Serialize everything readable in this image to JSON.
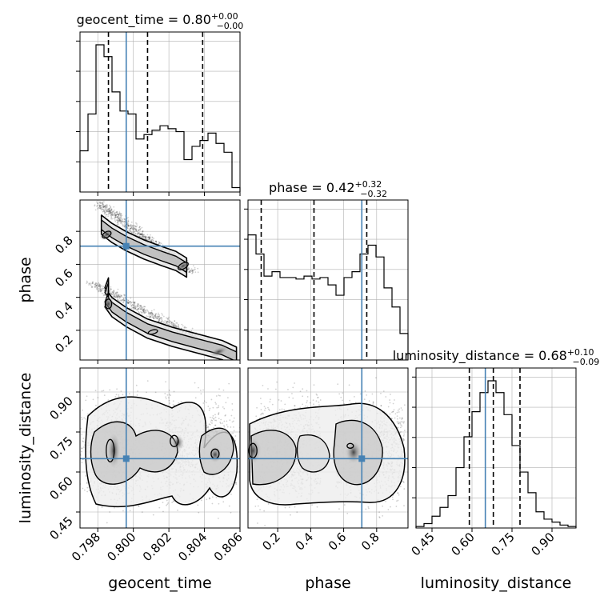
{
  "chart_data": {
    "type": "corner",
    "parameters": [
      "geocent_time",
      "phase",
      "luminosity_distance"
    ],
    "axis_labels": {
      "geocent_time": "geocent_time",
      "phase": "phase",
      "luminosity_distance": "luminosity_distance"
    },
    "titles": [
      {
        "param": "geocent_time",
        "prefix": "geocent_time = ",
        "median": "0.80",
        "plus": "+0.00",
        "minus": "−0.00"
      },
      {
        "param": "phase",
        "prefix": "phase = ",
        "median": "0.42",
        "plus": "+0.32",
        "minus": "−0.32"
      },
      {
        "param": "luminosity_distance",
        "prefix": "luminosity_distance = ",
        "median": "0.68",
        "plus": "+0.10",
        "minus": "−0.09"
      }
    ],
    "ranges": {
      "geocent_time": [
        0.797,
        0.806
      ],
      "phase": [
        0.02,
        0.99
      ],
      "luminosity_distance": [
        0.39,
        0.99
      ]
    },
    "ticks": {
      "geocent_time": [
        0.798,
        0.8,
        0.802,
        0.804,
        0.806
      ],
      "phase": [
        0.2,
        0.4,
        0.6,
        0.8
      ],
      "luminosity_distance": [
        0.45,
        0.6,
        0.75,
        0.9
      ]
    },
    "tick_labels": {
      "geocent_time": [
        "0.798",
        "0.800",
        "0.802",
        "0.804",
        "0.806"
      ],
      "phase": [
        "0.2",
        "0.4",
        "0.6",
        "0.8"
      ],
      "luminosity_distance": [
        "0.45",
        "0.60",
        "0.75",
        "0.90"
      ]
    },
    "truths": {
      "geocent_time": 0.7996,
      "phase": 0.71,
      "luminosity_distance": 0.65
    },
    "quantiles": {
      "geocent_time": [
        0.7986,
        0.8008,
        0.8039
      ],
      "phase": [
        0.1,
        0.42,
        0.74
      ],
      "luminosity_distance": [
        0.59,
        0.68,
        0.78
      ]
    },
    "histograms": {
      "geocent_time": [
        0.28,
        0.53,
        1.0,
        0.92,
        0.68,
        0.55,
        0.53,
        0.36,
        0.39,
        0.42,
        0.45,
        0.43,
        0.41,
        0.22,
        0.31,
        0.35,
        0.4,
        0.33,
        0.27,
        0.03
      ],
      "phase": [
        0.85,
        0.72,
        0.57,
        0.6,
        0.56,
        0.56,
        0.55,
        0.57,
        0.55,
        0.56,
        0.51,
        0.44,
        0.56,
        0.6,
        0.72,
        0.78,
        0.7,
        0.49,
        0.36,
        0.18
      ],
      "luminosity_distance": [
        0.01,
        0.03,
        0.08,
        0.14,
        0.22,
        0.41,
        0.62,
        0.79,
        0.92,
        1.0,
        0.92,
        0.77,
        0.56,
        0.38,
        0.24,
        0.11,
        0.06,
        0.04,
        0.02,
        0.01
      ]
    },
    "colors": {
      "truth": "#4682b4",
      "hist": "#000000",
      "grid": "#b0b0b0"
    },
    "grid": true
  }
}
